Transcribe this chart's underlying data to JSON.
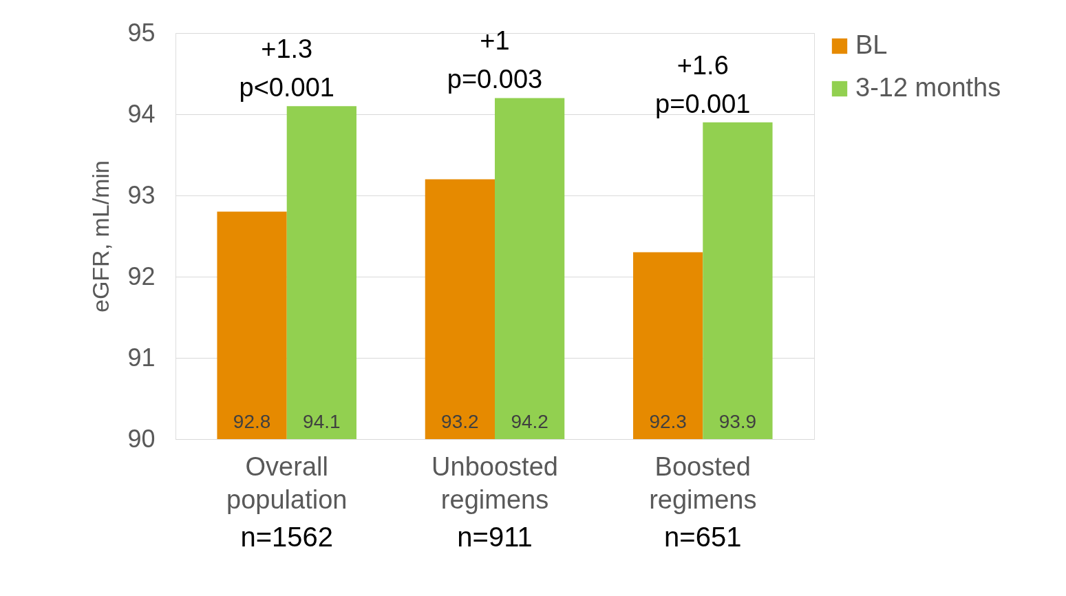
{
  "chart_data": {
    "type": "bar",
    "ylabel": "eGFR, mL/min",
    "categories": [
      "Overall population",
      "Unboosted regimens",
      "Boosted regimens"
    ],
    "series": [
      {
        "name": "BL",
        "color": "#e68a00",
        "values": [
          92.8,
          93.2,
          92.3
        ]
      },
      {
        "name": "3-12 months",
        "color": "#92d050",
        "values": [
          94.1,
          94.2,
          93.9
        ]
      }
    ],
    "ylim": [
      90,
      95
    ],
    "yticks": [
      90,
      91,
      92,
      93,
      94,
      95
    ],
    "grid": "y",
    "legend": "right",
    "data_labels": true,
    "annotations": [
      "+1.3\np<0.001",
      "+1\np=0.003",
      "+1.6\np=0.001",
      "n=1562",
      "n=911",
      "n=651"
    ]
  }
}
